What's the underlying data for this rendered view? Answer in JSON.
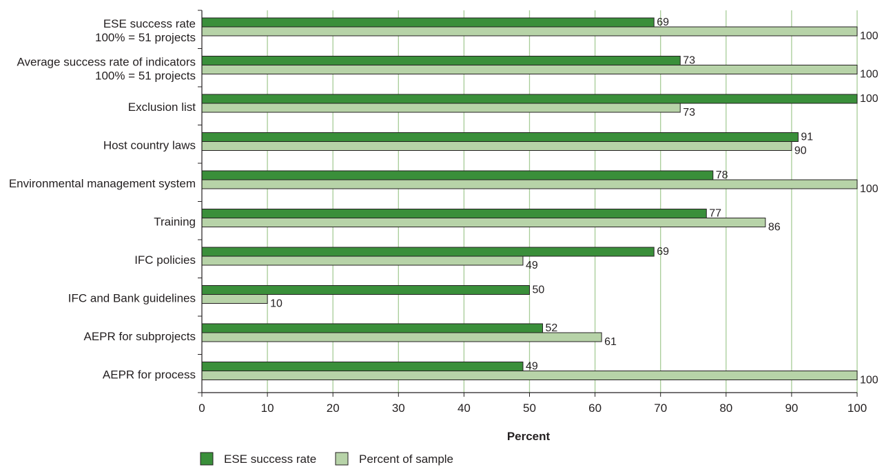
{
  "chart_data": {
    "type": "bar",
    "orientation": "horizontal",
    "categories": [
      [
        "ESE success rate",
        "100% = 51 projects"
      ],
      [
        "Average success rate of indicators",
        "100% = 51 projects"
      ],
      [
        "Exclusion list"
      ],
      [
        "Host country laws"
      ],
      [
        "Environmental management system"
      ],
      [
        "Training"
      ],
      [
        "IFC policies"
      ],
      [
        "IFC and Bank guidelines"
      ],
      [
        "AEPR for subprojects"
      ],
      [
        "AEPR for process"
      ]
    ],
    "series": [
      {
        "name": "ESE success rate",
        "color": "#3a8f3a",
        "values": [
          69,
          73,
          100,
          91,
          78,
          77,
          69,
          50,
          52,
          49
        ]
      },
      {
        "name": "Percent of sample",
        "color": "#b7d3a8",
        "values": [
          100,
          100,
          73,
          90,
          100,
          86,
          49,
          10,
          61,
          100
        ]
      }
    ],
    "xlabel": "Percent",
    "ylabel": "",
    "title": "",
    "xlim": [
      0,
      100
    ],
    "xticks": [
      0,
      10,
      20,
      30,
      40,
      50,
      60,
      70,
      80,
      90,
      100
    ],
    "grid": "vertical",
    "grid_color": "#a6cc96",
    "legend_position": "bottom-left"
  }
}
